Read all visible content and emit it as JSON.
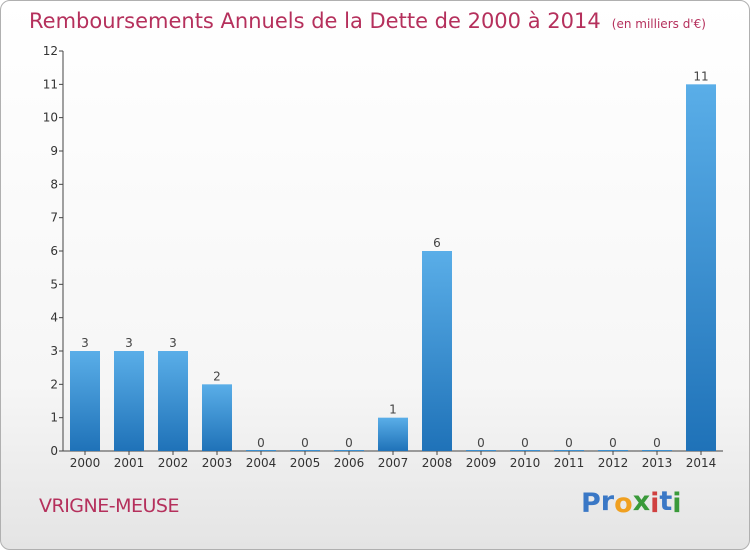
{
  "title": "Remboursements Annuels de la Dette de 2000 à 2014",
  "unit": "(en milliers d'€)",
  "commune": "VRIGNE-MEUSE",
  "logo": {
    "letters": [
      {
        "char": "P",
        "color": "#3a78c6"
      },
      {
        "char": "r",
        "color": "#3a78c6"
      },
      {
        "char": "o",
        "color": "#f0a020"
      },
      {
        "char": "x",
        "color": "#3a9a3a"
      },
      {
        "char": "i",
        "color": "#d04040"
      },
      {
        "char": "t",
        "color": "#3a78c6"
      },
      {
        "char": "i",
        "color": "#3a9a3a"
      }
    ]
  },
  "chart_data": {
    "type": "bar",
    "categories": [
      "2000",
      "2001",
      "2002",
      "2003",
      "2004",
      "2005",
      "2006",
      "2007",
      "2008",
      "2009",
      "2010",
      "2011",
      "2012",
      "2013",
      "2014"
    ],
    "values": [
      3,
      3,
      3,
      2,
      0,
      0,
      0,
      1,
      6,
      0,
      0,
      0,
      0,
      0,
      11
    ],
    "data_labels": [
      "3",
      "3",
      "3",
      "2",
      "0",
      "0",
      "0",
      "1",
      "6",
      "0",
      "0",
      "0",
      "0",
      "0",
      "11"
    ],
    "ylim": [
      0,
      12
    ],
    "yticks": [
      "0",
      "1",
      "2",
      "3",
      "4",
      "5",
      "6",
      "7",
      "8",
      "9",
      "10",
      "11",
      "12"
    ],
    "xlabel": "",
    "ylabel": "",
    "grid": false,
    "bar_color_top": "#5aaee8",
    "bar_color_bottom": "#1f72b8"
  }
}
